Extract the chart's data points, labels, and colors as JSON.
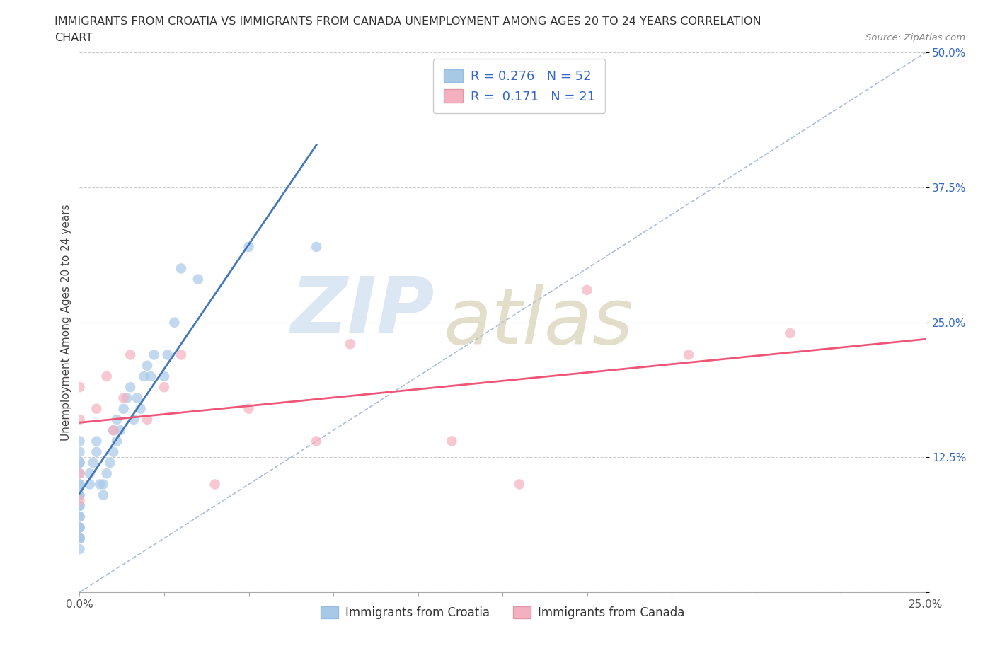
{
  "title_line1": "IMMIGRANTS FROM CROATIA VS IMMIGRANTS FROM CANADA UNEMPLOYMENT AMONG AGES 20 TO 24 YEARS CORRELATION",
  "title_line2": "CHART",
  "source": "Source: ZipAtlas.com",
  "ylabel": "Unemployment Among Ages 20 to 24 years",
  "xlim": [
    0.0,
    0.25
  ],
  "ylim": [
    0.0,
    0.5
  ],
  "xticks": [
    0.0,
    0.025,
    0.05,
    0.075,
    0.1,
    0.125,
    0.15,
    0.175,
    0.2,
    0.225,
    0.25
  ],
  "xtick_labels": [
    "0.0%",
    "",
    "",
    "",
    "",
    "",
    "",
    "",
    "",
    "",
    "25.0%"
  ],
  "yticks": [
    0.0,
    0.125,
    0.25,
    0.375,
    0.5
  ],
  "ytick_labels": [
    "",
    "12.5%",
    "25.0%",
    "37.5%",
    "50.0%"
  ],
  "croatia_R": 0.276,
  "croatia_N": 52,
  "canada_R": 0.171,
  "canada_N": 21,
  "croatia_color": "#a8c8e8",
  "canada_color": "#f5b0c0",
  "croatia_line_color": "#4477bb",
  "canada_line_color": "#ee5577",
  "ref_line_color": "#aabbdd",
  "watermark_zip": "ZIP",
  "watermark_atlas": "atlas",
  "watermark_color_zip": "#c5d8ee",
  "watermark_color_atlas": "#d0c8a8",
  "legend_R_color": "#3366cc",
  "background_color": "#ffffff",
  "croatia_x": [
    0.0,
    0.0,
    0.0,
    0.0,
    0.0,
    0.0,
    0.0,
    0.0,
    0.0,
    0.0,
    0.0,
    0.0,
    0.0,
    0.0,
    0.0,
    0.0,
    0.0,
    0.0,
    0.0,
    0.0,
    0.003,
    0.003,
    0.004,
    0.005,
    0.005,
    0.006,
    0.007,
    0.007,
    0.008,
    0.009,
    0.01,
    0.01,
    0.011,
    0.011,
    0.012,
    0.013,
    0.014,
    0.015,
    0.016,
    0.017,
    0.018,
    0.019,
    0.02,
    0.021,
    0.022,
    0.025,
    0.026,
    0.028,
    0.03,
    0.035,
    0.05,
    0.07
  ],
  "croatia_y": [
    0.04,
    0.05,
    0.06,
    0.07,
    0.08,
    0.09,
    0.1,
    0.1,
    0.11,
    0.12,
    0.12,
    0.13,
    0.14,
    0.05,
    0.05,
    0.06,
    0.06,
    0.07,
    0.08,
    0.09,
    0.1,
    0.11,
    0.12,
    0.13,
    0.14,
    0.1,
    0.09,
    0.1,
    0.11,
    0.12,
    0.13,
    0.15,
    0.14,
    0.16,
    0.15,
    0.17,
    0.18,
    0.19,
    0.16,
    0.18,
    0.17,
    0.2,
    0.21,
    0.2,
    0.22,
    0.2,
    0.22,
    0.25,
    0.3,
    0.29,
    0.32,
    0.32
  ],
  "canada_x": [
    0.0,
    0.0,
    0.0,
    0.0,
    0.005,
    0.008,
    0.01,
    0.013,
    0.015,
    0.02,
    0.025,
    0.03,
    0.04,
    0.05,
    0.07,
    0.08,
    0.11,
    0.13,
    0.15,
    0.18,
    0.21
  ],
  "canada_y": [
    0.085,
    0.11,
    0.16,
    0.19,
    0.17,
    0.2,
    0.15,
    0.18,
    0.22,
    0.16,
    0.19,
    0.22,
    0.1,
    0.17,
    0.14,
    0.23,
    0.14,
    0.1,
    0.28,
    0.22,
    0.24
  ]
}
